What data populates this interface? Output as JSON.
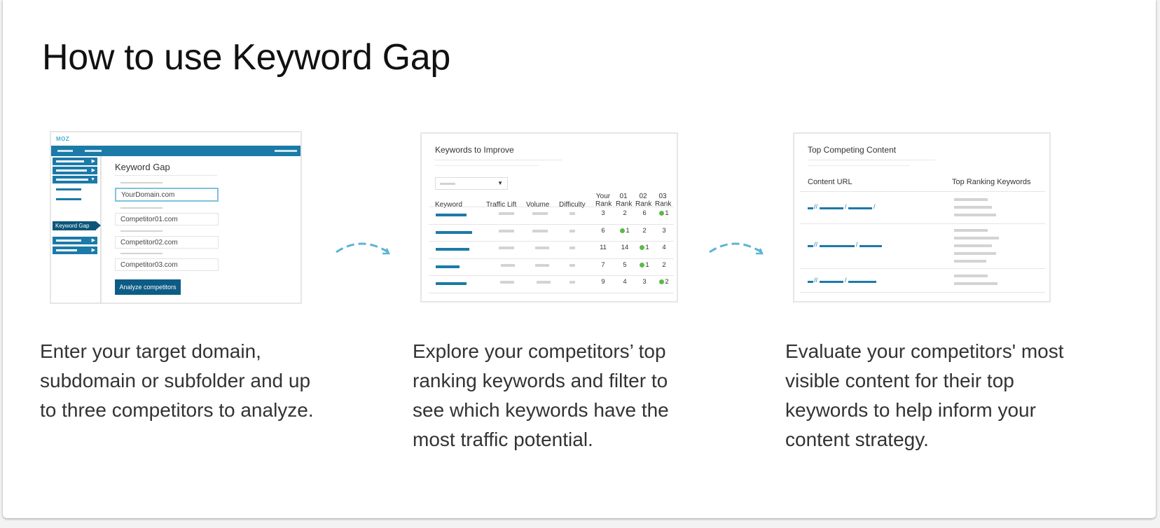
{
  "page": {
    "title": "How to use Keyword Gap"
  },
  "steps": [
    {
      "description": "Enter your target domain, subdomain or subfolder and up to three competitors to analyze.",
      "screenshot": {
        "logo": "MOZ",
        "heading": "Keyword Gap",
        "active_nav": "Keyword Gap",
        "fields": [
          "YourDomain.com",
          "Competitor01.com",
          "Competitor02.com",
          "Competitor03.com"
        ],
        "button": "Analyze competitors"
      }
    },
    {
      "description": "Explore your competitors’ top ranking keywords and filter to see which keywords have the most traffic potential.",
      "screenshot": {
        "heading": "Keywords to Improve",
        "columns": [
          "Keyword",
          "Traffic Lift",
          "Volume",
          "Difficulty",
          "Your Rank",
          "01 Rank",
          "02 Rank",
          "03 Rank"
        ],
        "rows": [
          {
            "your": "3",
            "r01": "2",
            "r02": "6",
            "r03": "1",
            "hl": "r03"
          },
          {
            "your": "6",
            "r01": "1",
            "r02": "2",
            "r03": "3",
            "hl": "r01"
          },
          {
            "your": "11",
            "r01": "14",
            "r02": "1",
            "r03": "4",
            "hl": "r02"
          },
          {
            "your": "7",
            "r01": "5",
            "r02": "1",
            "r03": "2",
            "hl": "r02"
          },
          {
            "your": "9",
            "r01": "4",
            "r02": "3",
            "r03": "2",
            "hl": "r03"
          }
        ]
      }
    },
    {
      "description": "Evaluate your competitors' most visible content for their top keywords to help inform your content strategy.",
      "screenshot": {
        "heading": "Top Competing Content",
        "columns": [
          "Content URL",
          "Top Ranking Keywords"
        ]
      }
    }
  ],
  "colors": {
    "accent": "#1b7aa8",
    "dark_accent": "#0d5c85",
    "highlight": "#5cbb44",
    "arrow": "#5ab4d8"
  }
}
